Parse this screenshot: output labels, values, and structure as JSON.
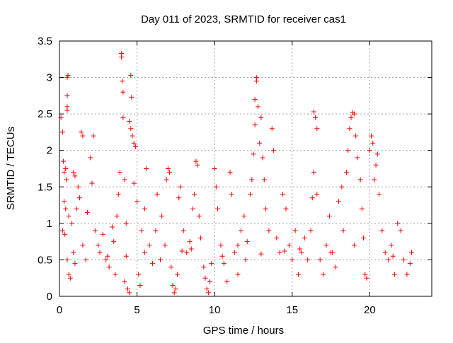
{
  "chart_data": {
    "type": "scatter",
    "title": "Day 011 of 2023, SRMTID for receiver cas1",
    "xlabel": "GPS time / hours",
    "ylabel": "SRMTID / TECUs",
    "xlim": [
      0,
      24
    ],
    "ylim": [
      0,
      3.5
    ],
    "x_ticks": [
      0,
      5,
      10,
      15,
      20
    ],
    "x_tick_labels": [
      "0",
      "5",
      "10",
      "15",
      "20"
    ],
    "y_ticks": [
      0,
      0.5,
      1,
      1.5,
      2,
      2.5,
      3,
      3.5
    ],
    "y_tick_labels": [
      "0",
      "0.5",
      "1",
      "1.5",
      "2",
      "2.5",
      "3",
      "3.5"
    ],
    "grid": true,
    "marker": "+",
    "marker_color": "#ff0000",
    "series": [
      {
        "name": "SRMTID",
        "points": [
          [
            0.1,
            2.45
          ],
          [
            0.2,
            2.25
          ],
          [
            0.25,
            1.85
          ],
          [
            0.3,
            1.7
          ],
          [
            0.4,
            1.75
          ],
          [
            0.45,
            1.6
          ],
          [
            0.5,
            2.6
          ],
          [
            0.5,
            2.55
          ],
          [
            0.5,
            3.0
          ],
          [
            0.55,
            3.03
          ],
          [
            0.5,
            2.75
          ],
          [
            0.3,
            1.3
          ],
          [
            0.4,
            1.2
          ],
          [
            0.6,
            1.1
          ],
          [
            0.2,
            0.9
          ],
          [
            0.35,
            0.85
          ],
          [
            0.5,
            0.5
          ],
          [
            0.6,
            0.3
          ],
          [
            0.7,
            0.25
          ],
          [
            0.9,
            1.7
          ],
          [
            1.0,
            1.65
          ],
          [
            1.2,
            1.5
          ],
          [
            1.4,
            2.25
          ],
          [
            1.5,
            2.2
          ],
          [
            1.3,
            1.35
          ],
          [
            1.1,
            1.2
          ],
          [
            0.8,
            1.0
          ],
          [
            0.9,
            0.6
          ],
          [
            1.0,
            0.45
          ],
          [
            1.5,
            0.7
          ],
          [
            1.7,
            0.5
          ],
          [
            1.8,
            1.15
          ],
          [
            2.0,
            1.9
          ],
          [
            2.2,
            2.2
          ],
          [
            2.1,
            1.55
          ],
          [
            2.3,
            0.9
          ],
          [
            2.5,
            0.7
          ],
          [
            2.6,
            0.6
          ],
          [
            2.8,
            0.85
          ],
          [
            3.0,
            0.5
          ],
          [
            3.2,
            0.4
          ],
          [
            3.4,
            0.95
          ],
          [
            3.5,
            0.75
          ],
          [
            3.6,
            0.3
          ],
          [
            3.7,
            1.1
          ],
          [
            3.8,
            1.4
          ],
          [
            3.9,
            1.7
          ],
          [
            4.0,
            3.33
          ],
          [
            4.0,
            3.28
          ],
          [
            4.05,
            2.95
          ],
          [
            4.1,
            2.8
          ],
          [
            4.1,
            2.45
          ],
          [
            4.2,
            1.6
          ],
          [
            4.3,
            1.0
          ],
          [
            4.3,
            0.55
          ],
          [
            4.2,
            0.2
          ],
          [
            4.4,
            0.1
          ],
          [
            4.5,
            0.05
          ],
          [
            4.5,
            2.4
          ],
          [
            4.6,
            2.3
          ],
          [
            4.7,
            2.2
          ],
          [
            4.65,
            2.73
          ],
          [
            4.6,
            3.03
          ],
          [
            4.8,
            2.1
          ],
          [
            4.9,
            2.05
          ],
          [
            4.8,
            1.55
          ],
          [
            5.0,
            1.3
          ],
          [
            5.1,
            0.3
          ],
          [
            5.2,
            0.15
          ],
          [
            5.3,
            0.9
          ],
          [
            5.5,
            1.2
          ],
          [
            5.6,
            1.75
          ],
          [
            5.8,
            0.7
          ],
          [
            6.0,
            0.45
          ],
          [
            6.2,
            0.9
          ],
          [
            6.3,
            1.4
          ],
          [
            6.5,
            0.5
          ],
          [
            6.6,
            1.1
          ],
          [
            6.8,
            0.7
          ],
          [
            6.9,
            1.6
          ],
          [
            7.0,
            1.75
          ],
          [
            7.1,
            1.7
          ],
          [
            7.2,
            0.4
          ],
          [
            7.3,
            0.15
          ],
          [
            7.4,
            0.05
          ],
          [
            7.5,
            0.1
          ],
          [
            7.6,
            0.3
          ],
          [
            7.7,
            1.35
          ],
          [
            7.8,
            1.5
          ],
          [
            8.0,
            0.9
          ],
          [
            8.2,
            0.6
          ],
          [
            8.4,
            0.75
          ],
          [
            8.6,
            1.2
          ],
          [
            8.7,
            1.4
          ],
          [
            8.8,
            1.85
          ],
          [
            8.9,
            1.8
          ],
          [
            9.0,
            1.1
          ],
          [
            9.1,
            0.8
          ],
          [
            9.3,
            0.4
          ],
          [
            9.4,
            0.25
          ],
          [
            9.5,
            0.1
          ],
          [
            9.6,
            0.05
          ],
          [
            9.7,
            0.2
          ],
          [
            9.8,
            0.45
          ],
          [
            10.0,
            1.75
          ],
          [
            10.1,
            1.5
          ],
          [
            10.2,
            1.2
          ],
          [
            10.4,
            0.7
          ],
          [
            10.6,
            0.45
          ],
          [
            10.8,
            0.2
          ],
          [
            11.0,
            1.7
          ],
          [
            11.1,
            1.4
          ],
          [
            11.3,
            0.6
          ],
          [
            11.5,
            0.3
          ],
          [
            11.7,
            0.9
          ],
          [
            11.9,
            1.1
          ],
          [
            12.0,
            0.5
          ],
          [
            12.1,
            0.75
          ],
          [
            12.3,
            1.4
          ],
          [
            12.4,
            1.6
          ],
          [
            12.5,
            1.95
          ],
          [
            12.6,
            2.35
          ],
          [
            12.6,
            2.7
          ],
          [
            12.7,
            2.95
          ],
          [
            12.7,
            3.0
          ],
          [
            12.8,
            2.6
          ],
          [
            12.9,
            2.1
          ],
          [
            13.0,
            2.45
          ],
          [
            13.1,
            1.9
          ],
          [
            13.2,
            1.6
          ],
          [
            13.3,
            1.2
          ],
          [
            13.5,
            0.9
          ],
          [
            13.7,
            2.3
          ],
          [
            13.8,
            2.0
          ],
          [
            14.0,
            0.8
          ],
          [
            14.2,
            0.6
          ],
          [
            14.4,
            1.4
          ],
          [
            14.6,
            1.2
          ],
          [
            14.8,
            0.7
          ],
          [
            15.0,
            0.5
          ],
          [
            15.2,
            0.9
          ],
          [
            15.4,
            0.3
          ],
          [
            15.6,
            0.6
          ],
          [
            15.8,
            0.8
          ],
          [
            16.0,
            0.5
          ],
          [
            16.2,
            0.9
          ],
          [
            16.3,
            1.35
          ],
          [
            16.4,
            2.53
          ],
          [
            16.5,
            2.45
          ],
          [
            16.6,
            2.3
          ],
          [
            16.4,
            1.7
          ],
          [
            16.6,
            1.4
          ],
          [
            16.8,
            0.5
          ],
          [
            17.0,
            0.3
          ],
          [
            17.2,
            0.7
          ],
          [
            17.4,
            1.1
          ],
          [
            17.6,
            0.6
          ],
          [
            17.8,
            0.4
          ],
          [
            18.0,
            1.3
          ],
          [
            18.2,
            1.5
          ],
          [
            18.3,
            0.9
          ],
          [
            18.5,
            1.7
          ],
          [
            18.6,
            2.0
          ],
          [
            18.7,
            2.3
          ],
          [
            18.8,
            2.45
          ],
          [
            18.9,
            2.52
          ],
          [
            19.0,
            2.5
          ],
          [
            19.1,
            2.2
          ],
          [
            19.2,
            1.9
          ],
          [
            19.4,
            1.6
          ],
          [
            19.5,
            1.2
          ],
          [
            19.6,
            0.8
          ],
          [
            19.7,
            0.3
          ],
          [
            19.8,
            0.25
          ],
          [
            20.0,
            2.0
          ],
          [
            20.1,
            2.2
          ],
          [
            20.2,
            2.1
          ],
          [
            20.3,
            1.6
          ],
          [
            20.4,
            1.8
          ],
          [
            20.5,
            1.95
          ],
          [
            20.6,
            1.4
          ],
          [
            20.8,
            0.9
          ],
          [
            21.0,
            0.6
          ],
          [
            21.2,
            0.5
          ],
          [
            21.4,
            0.7
          ],
          [
            21.6,
            0.3
          ],
          [
            21.8,
            1.0
          ],
          [
            22.0,
            0.9
          ],
          [
            22.2,
            0.5
          ],
          [
            22.4,
            0.3
          ],
          [
            22.6,
            0.45
          ],
          [
            22.7,
            0.6
          ],
          [
            3.1,
            0.55
          ],
          [
            5.5,
            0.6
          ],
          [
            7.9,
            0.62
          ],
          [
            10.5,
            0.55
          ],
          [
            13.0,
            0.58
          ],
          [
            15.5,
            0.65
          ],
          [
            17.5,
            0.6
          ],
          [
            19.0,
            0.7
          ],
          [
            21.5,
            0.55
          ],
          [
            8.5,
            0.65
          ],
          [
            11.5,
            0.7
          ],
          [
            14.5,
            0.62
          ]
        ]
      }
    ]
  }
}
